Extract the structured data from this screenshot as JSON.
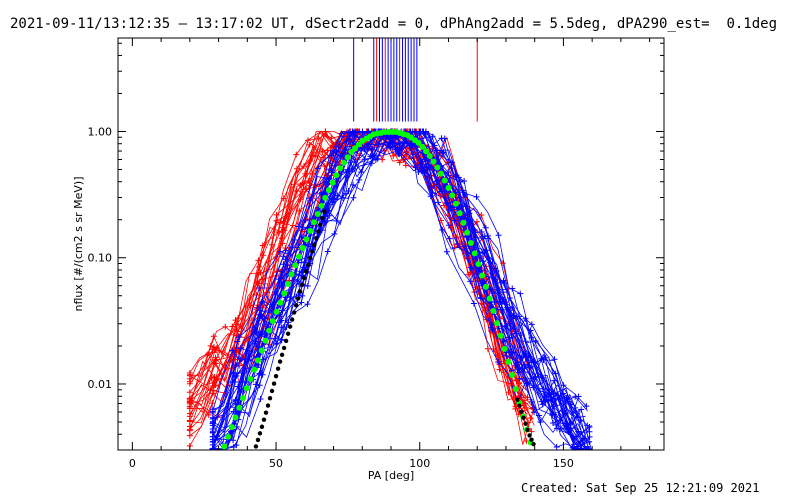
{
  "title": "2021-09-11/13:12:35 – 13:17:02 UT, dSectr2add = 0, dPhAng2add = 5.5deg, dPA290_est=  0.1deg",
  "created": "Created: Sat Sep 25 12:21:09 2021",
  "colors": {
    "red": "#ff0000",
    "blue": "#0000ff",
    "green": "#00ff00",
    "black": "#000000"
  },
  "chart_data": {
    "type": "line",
    "xlabel": "PA [deg]",
    "ylabel": "nflux [#/(cm2 s sr MeV)]",
    "xlim": [
      -5,
      185
    ],
    "ylim": [
      0.003,
      5.5
    ],
    "yscale": "log",
    "x_ticks": [
      0,
      50,
      100,
      150
    ],
    "y_ticks": [
      {
        "value": 0.01,
        "label": "0.01"
      },
      {
        "value": 0.1,
        "label": "0.10"
      },
      {
        "value": 1.0,
        "label": "1.00"
      }
    ],
    "grid": false,
    "series": [
      {
        "role": "green-fit",
        "color": "#00ff00",
        "x": [
          32,
          36,
          40,
          44,
          48,
          52,
          56,
          60,
          64,
          68,
          72,
          76,
          80,
          84,
          88,
          92,
          96,
          100,
          104,
          108,
          112,
          116,
          120,
          124,
          128,
          132,
          136,
          139
        ],
        "y": [
          0.0032,
          0.0055,
          0.0095,
          0.016,
          0.028,
          0.047,
          0.08,
          0.13,
          0.21,
          0.33,
          0.5,
          0.68,
          0.84,
          0.95,
          0.99,
          0.99,
          0.93,
          0.8,
          0.62,
          0.44,
          0.29,
          0.17,
          0.095,
          0.05,
          0.025,
          0.012,
          0.0055,
          0.0032
        ]
      },
      {
        "role": "black-fit",
        "color": "#000000",
        "x": [
          43,
          45,
          47,
          49,
          51,
          53,
          55,
          57,
          59,
          61,
          63,
          65,
          67
        ],
        "y": [
          0.0032,
          0.0045,
          0.0065,
          0.0095,
          0.014,
          0.02,
          0.029,
          0.042,
          0.06,
          0.085,
          0.12,
          0.17,
          0.24
        ]
      },
      {
        "role": "black-fit-right",
        "color": "#000000",
        "x": [
          134,
          136,
          138,
          140
        ],
        "y": [
          0.0075,
          0.0055,
          0.004,
          0.0032
        ]
      },
      {
        "role": "blue-envelope",
        "color": "#0000ff",
        "x": [
          30,
          35,
          40,
          45,
          50,
          55,
          60,
          65,
          70,
          75,
          80,
          85,
          90,
          95,
          100,
          105,
          110,
          115,
          120,
          125,
          130,
          135,
          140,
          145,
          150,
          155,
          160
        ],
        "y": [
          0.003,
          0.006,
          0.012,
          0.022,
          0.035,
          0.06,
          0.1,
          0.2,
          0.35,
          0.55,
          0.8,
          0.95,
          1.0,
          0.95,
          0.8,
          0.55,
          0.35,
          0.2,
          0.12,
          0.06,
          0.035,
          0.02,
          0.012,
          0.008,
          0.006,
          0.004,
          0.003
        ]
      },
      {
        "role": "red-envelope",
        "color": "#ff0000",
        "x": [
          20,
          25,
          30,
          35,
          40,
          45,
          50,
          55,
          60,
          65,
          70,
          75,
          80,
          85,
          90,
          95,
          100,
          105,
          110,
          115,
          120,
          125,
          130,
          135,
          140
        ],
        "y": [
          0.005,
          0.008,
          0.012,
          0.015,
          0.02,
          0.04,
          0.08,
          0.15,
          0.3,
          0.5,
          0.7,
          0.85,
          0.95,
          1.0,
          0.98,
          0.9,
          0.75,
          0.55,
          0.35,
          0.2,
          0.1,
          0.05,
          0.02,
          0.01,
          0.005
        ]
      }
    ]
  }
}
